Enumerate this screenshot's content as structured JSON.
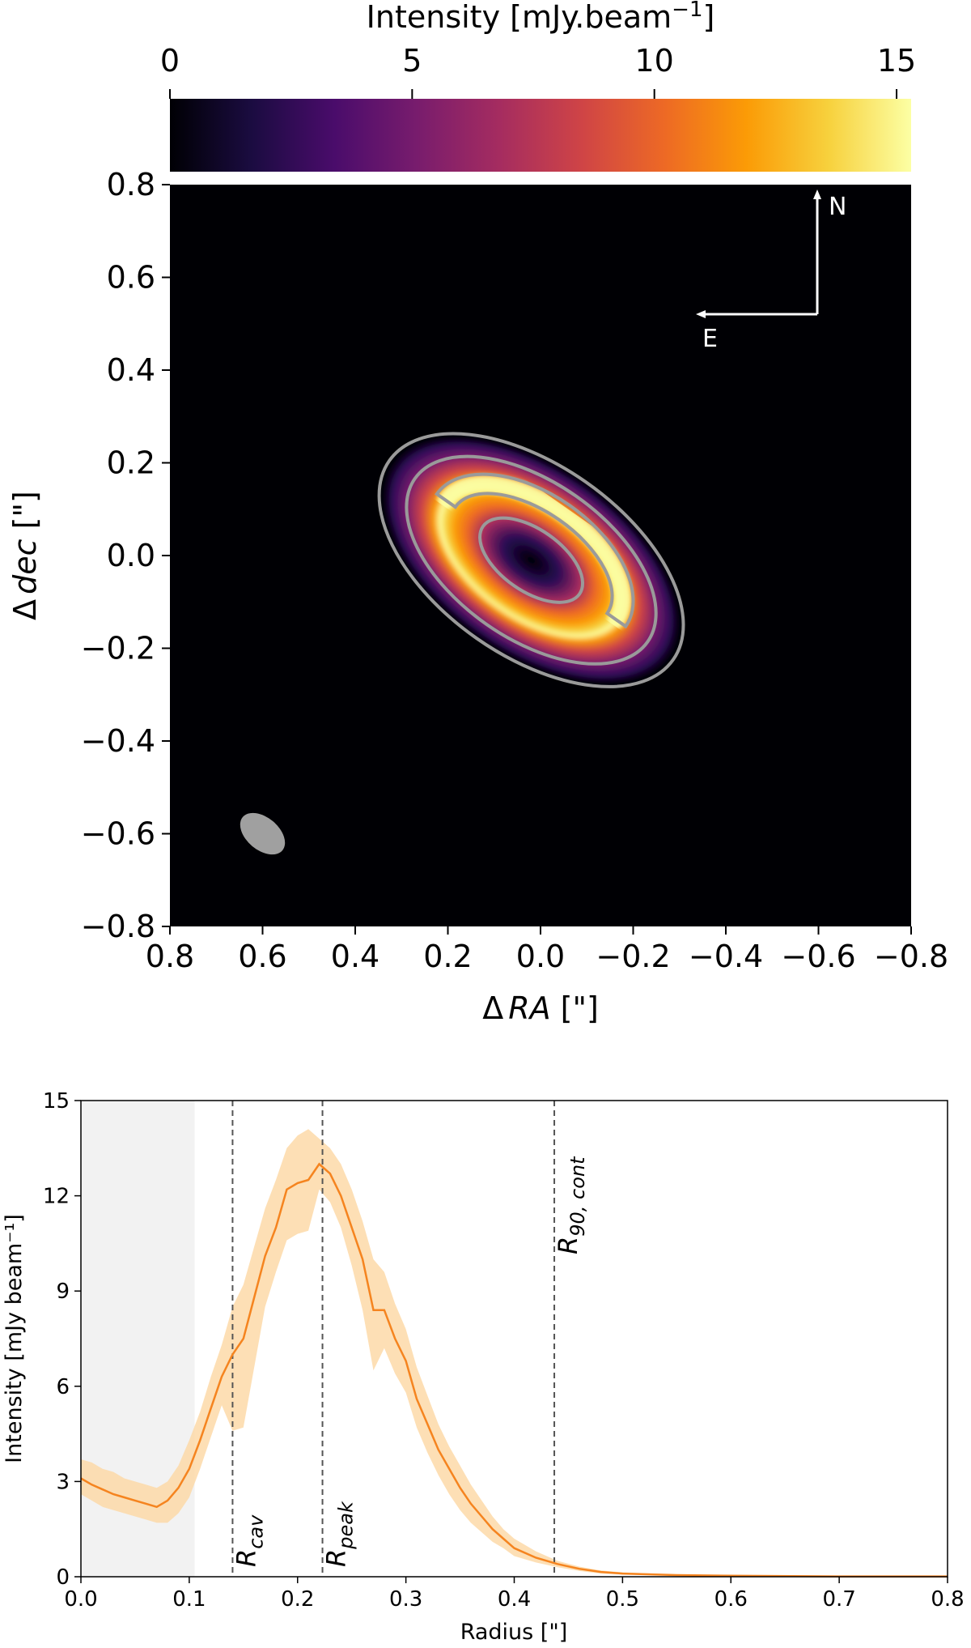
{
  "chart_data": [
    {
      "type": "heatmap",
      "colorbar": {
        "label_prefix": "Intensity [mJy.beam",
        "label_sup": "−1",
        "label_suffix": "]",
        "range": [
          0,
          15.3
        ],
        "ticks": [
          "0",
          "5",
          "10",
          "15"
        ],
        "tick_values": [
          0,
          5,
          10,
          15
        ],
        "colormap": "inferno",
        "colors": [
          "#000004",
          "#1b0c41",
          "#4a0c6b",
          "#781c6d",
          "#a52c60",
          "#cf4446",
          "#ed6925",
          "#fb9b06",
          "#f7d13d",
          "#fcffa4"
        ]
      },
      "xlabel_prefix": "Δ",
      "xlabel_var": "RA",
      "xlabel_suffix": " [\"]",
      "ylabel_prefix": "Δ",
      "ylabel_var": "dec",
      "ylabel_suffix": " [\"]",
      "xlim": [
        0.8,
        -0.8
      ],
      "ylim": [
        -0.8,
        0.8
      ],
      "x_ticks": [
        "0.8",
        "0.6",
        "0.4",
        "0.2",
        "0.0",
        "−0.2",
        "−0.4",
        "−0.6",
        "−0.8"
      ],
      "x_tick_values": [
        0.8,
        0.6,
        0.4,
        0.2,
        0.0,
        -0.2,
        -0.4,
        -0.6,
        -0.8
      ],
      "y_ticks": [
        "0.8",
        "0.6",
        "0.4",
        "0.2",
        "0.0",
        "−0.2",
        "−0.4",
        "−0.6",
        "−0.8"
      ],
      "y_tick_values": [
        0.8,
        0.6,
        0.4,
        0.2,
        0.0,
        -0.2,
        -0.4,
        -0.6,
        -0.8
      ],
      "compass": {
        "north": "N",
        "east": "E"
      },
      "ring": {
        "center": [
          0.02,
          -0.01
        ],
        "radius_arcsec": 0.22,
        "position_angle_deg": 35,
        "axis_ratio": 0.55,
        "peak_intensity": 15
      },
      "contour_color": "#9a9a9a",
      "beam": {
        "center": [
          0.6,
          -0.6
        ],
        "color": "#a0a0a0"
      }
    },
    {
      "type": "line",
      "xlabel": "Radius [\"]",
      "ylabel": "Intensity [mJy beam⁻¹]",
      "xlim": [
        0,
        0.8
      ],
      "ylim": [
        0,
        15
      ],
      "x_ticks": [
        "0.0",
        "0.1",
        "0.2",
        "0.3",
        "0.4",
        "0.5",
        "0.6",
        "0.7",
        "0.8"
      ],
      "x_tick_values": [
        0,
        0.1,
        0.2,
        0.3,
        0.4,
        0.5,
        0.6,
        0.7,
        0.8
      ],
      "y_ticks": [
        "0",
        "3",
        "6",
        "9",
        "12",
        "15"
      ],
      "y_tick_values": [
        0,
        3,
        6,
        9,
        12,
        15
      ],
      "shaded_region": {
        "x": [
          0,
          0.105
        ],
        "color": "#f2f2f2"
      },
      "line_color": "#f5841f",
      "band_color": "#fdd9a8",
      "series": [
        {
          "x": [
            0.0,
            0.01,
            0.02,
            0.03,
            0.04,
            0.05,
            0.06,
            0.07,
            0.08,
            0.09,
            0.1,
            0.11,
            0.12,
            0.13,
            0.14,
            0.15,
            0.16,
            0.17,
            0.18,
            0.19,
            0.2,
            0.21,
            0.22,
            0.23,
            0.24,
            0.25,
            0.26,
            0.27,
            0.28,
            0.29,
            0.3,
            0.31,
            0.32,
            0.33,
            0.34,
            0.35,
            0.36,
            0.37,
            0.38,
            0.39,
            0.4,
            0.42,
            0.44,
            0.46,
            0.48,
            0.5,
            0.55,
            0.6,
            0.7,
            0.8
          ],
          "values": [
            3.1,
            2.9,
            2.75,
            2.6,
            2.5,
            2.4,
            2.3,
            2.2,
            2.4,
            2.8,
            3.4,
            4.3,
            5.3,
            6.3,
            7.0,
            7.5,
            8.8,
            10.1,
            11.0,
            12.2,
            12.4,
            12.5,
            13.0,
            12.7,
            12.0,
            11.0,
            10.0,
            8.4,
            8.4,
            7.5,
            6.8,
            5.6,
            4.8,
            4.0,
            3.4,
            2.8,
            2.3,
            1.9,
            1.5,
            1.2,
            0.9,
            0.6,
            0.4,
            0.25,
            0.15,
            0.1,
            0.05,
            0.03,
            0.01,
            0.01
          ],
          "lower": [
            2.6,
            2.4,
            2.2,
            2.1,
            2.0,
            1.9,
            1.8,
            1.7,
            1.7,
            2.0,
            2.5,
            3.4,
            4.4,
            5.4,
            4.6,
            4.7,
            6.6,
            8.5,
            9.6,
            10.6,
            10.8,
            10.9,
            12.2,
            11.8,
            11.0,
            9.8,
            8.4,
            6.5,
            7.2,
            6.4,
            5.8,
            4.7,
            3.9,
            3.2,
            2.6,
            2.1,
            1.7,
            1.4,
            1.1,
            0.9,
            0.65,
            0.45,
            0.3,
            0.18,
            0.1,
            0.07,
            0.03,
            0.02,
            0.01,
            0.01
          ],
          "upper": [
            3.7,
            3.6,
            3.4,
            3.3,
            3.1,
            3.0,
            2.9,
            2.8,
            3.0,
            3.5,
            4.3,
            5.2,
            6.3,
            7.3,
            8.5,
            9.2,
            10.4,
            11.6,
            12.5,
            13.5,
            13.9,
            14.1,
            13.8,
            13.5,
            13.0,
            12.2,
            11.2,
            10.0,
            9.6,
            8.6,
            7.8,
            6.6,
            5.7,
            4.8,
            4.1,
            3.5,
            2.9,
            2.4,
            1.9,
            1.5,
            1.2,
            0.8,
            0.5,
            0.32,
            0.2,
            0.14,
            0.07,
            0.04,
            0.02,
            0.02
          ]
        }
      ],
      "vlines": [
        {
          "x": 0.14,
          "label_base": "R",
          "label_sub": "cav"
        },
        {
          "x": 0.223,
          "label_base": "R",
          "label_sub": "peak"
        },
        {
          "x": 0.437,
          "label_base": "R",
          "label_sub": "90, cont"
        }
      ]
    }
  ]
}
